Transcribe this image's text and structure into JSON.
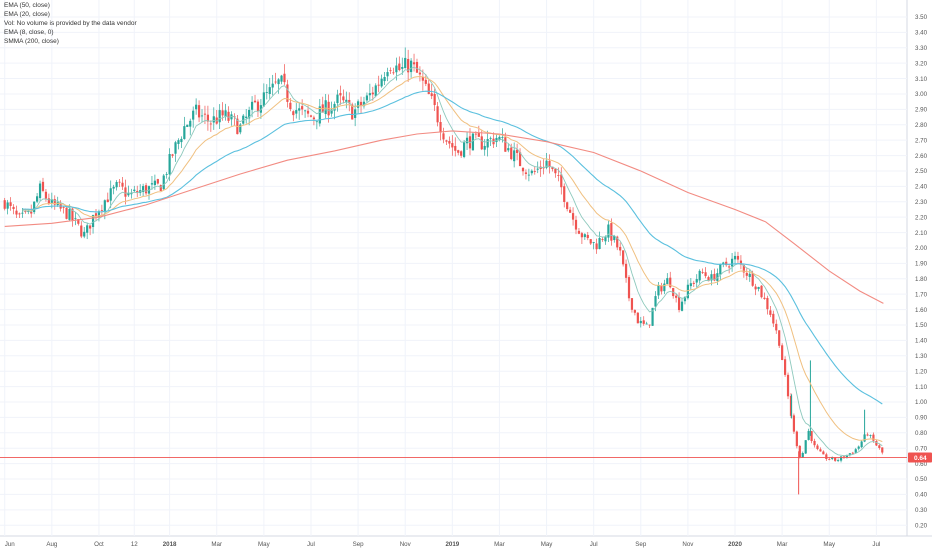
{
  "legend": [
    {
      "text": "EMA (50, close)"
    },
    {
      "text": "EMA (20, close)"
    },
    {
      "text": "Vol: No volume is provided by the data vendor"
    },
    {
      "text": "EMA (8, close, 0)"
    },
    {
      "text": "SMMA (200, close)"
    }
  ],
  "colors": {
    "up": "#26a69a",
    "down": "#ef5350",
    "ema50": "#5bc0de",
    "ema20": "#f0c080",
    "ema8": "#8ec9bd",
    "smma200": "#f28b82",
    "price_line": "#ef5350",
    "price_tag_bg": "#ef5350",
    "grid": "#f0f3fa",
    "axis_text": "#555555"
  },
  "chart_data": {
    "type": "candlestick",
    "y_axis_ticks": [
      "0.20",
      "0.30",
      "0.40",
      "0.50",
      "0.60",
      "0.70",
      "0.80",
      "0.90",
      "1.00",
      "1.10",
      "1.20",
      "1.30",
      "1.40",
      "1.50",
      "1.60",
      "1.70",
      "1.80",
      "1.90",
      "2.00",
      "2.10",
      "2.20",
      "2.30",
      "2.40",
      "2.50",
      "2.60",
      "2.70",
      "2.80",
      "2.90",
      "3.00",
      "3.10",
      "3.20",
      "3.30",
      "3.40",
      "3.50"
    ],
    "ylim": [
      0.13,
      3.61
    ],
    "x_axis_ticks": [
      {
        "label": "Jun",
        "x": 0
      },
      {
        "label": "Aug",
        "x": 2
      },
      {
        "label": "Oct",
        "x": 4
      },
      {
        "label": "12",
        "x": 5.5
      },
      {
        "label": "2018",
        "x": 7
      },
      {
        "label": "Mar",
        "x": 9
      },
      {
        "label": "May",
        "x": 11
      },
      {
        "label": "Jul",
        "x": 13
      },
      {
        "label": "Sep",
        "x": 15
      },
      {
        "label": "Nov",
        "x": 17
      },
      {
        "label": "2019",
        "x": 19
      },
      {
        "label": "Mar",
        "x": 21
      },
      {
        "label": "May",
        "x": 23
      },
      {
        "label": "Jul",
        "x": 25
      },
      {
        "label": "Sep",
        "x": 27
      },
      {
        "label": "Nov",
        "x": 29
      },
      {
        "label": "2020",
        "x": 31
      },
      {
        "label": "Mar",
        "x": 33
      },
      {
        "label": "May",
        "x": 35
      },
      {
        "label": "Jul",
        "x": 37
      }
    ],
    "xlim": [
      -0.2,
      38.3
    ],
    "last_price": "0.64",
    "price_path": [
      [
        0,
        2.3
      ],
      [
        0.6,
        2.18
      ],
      [
        1.1,
        2.22
      ],
      [
        1.5,
        2.38
      ],
      [
        2.0,
        2.28
      ],
      [
        2.7,
        2.22
      ],
      [
        3.4,
        2.08
      ],
      [
        3.8,
        2.22
      ],
      [
        4.3,
        2.32
      ],
      [
        4.8,
        2.4
      ],
      [
        5.3,
        2.34
      ],
      [
        5.9,
        2.38
      ],
      [
        6.6,
        2.4
      ],
      [
        7.1,
        2.6
      ],
      [
        7.6,
        2.78
      ],
      [
        8.1,
        2.88
      ],
      [
        8.7,
        2.82
      ],
      [
        9.3,
        2.86
      ],
      [
        10.0,
        2.78
      ],
      [
        10.6,
        2.92
      ],
      [
        11.2,
        3.0
      ],
      [
        11.7,
        3.08
      ],
      [
        12.2,
        2.92
      ],
      [
        12.7,
        2.86
      ],
      [
        13.1,
        2.85
      ],
      [
        13.6,
        2.9
      ],
      [
        14.2,
        2.96
      ],
      [
        14.8,
        2.88
      ],
      [
        15.4,
        2.97
      ],
      [
        15.9,
        3.08
      ],
      [
        16.3,
        3.21
      ],
      [
        16.8,
        3.15
      ],
      [
        17.2,
        3.2
      ],
      [
        17.7,
        3.08
      ],
      [
        18.2,
        2.92
      ],
      [
        18.7,
        2.72
      ],
      [
        19.2,
        2.62
      ],
      [
        19.7,
        2.7
      ],
      [
        20.3,
        2.68
      ],
      [
        20.9,
        2.72
      ],
      [
        21.4,
        2.64
      ],
      [
        21.9,
        2.55
      ],
      [
        22.4,
        2.48
      ],
      [
        23.0,
        2.56
      ],
      [
        23.6,
        2.4
      ],
      [
        24.1,
        2.2
      ],
      [
        24.6,
        2.06
      ],
      [
        25.1,
        2.02
      ],
      [
        25.6,
        2.12
      ],
      [
        26.1,
        1.98
      ],
      [
        26.5,
        1.68
      ],
      [
        26.9,
        1.52
      ],
      [
        27.3,
        1.48
      ],
      [
        27.7,
        1.72
      ],
      [
        28.2,
        1.8
      ],
      [
        28.6,
        1.62
      ],
      [
        29.1,
        1.76
      ],
      [
        29.6,
        1.84
      ],
      [
        30.0,
        1.8
      ],
      [
        30.5,
        1.88
      ],
      [
        31.0,
        1.93
      ],
      [
        31.5,
        1.84
      ],
      [
        32.0,
        1.74
      ],
      [
        32.5,
        1.58
      ],
      [
        32.9,
        1.38
      ],
      [
        33.2,
        1.08
      ],
      [
        33.5,
        0.8
      ],
      [
        33.8,
        0.62
      ],
      [
        34.1,
        0.82
      ],
      [
        34.4,
        0.7
      ],
      [
        34.8,
        0.64
      ],
      [
        35.3,
        0.62
      ],
      [
        35.8,
        0.66
      ],
      [
        36.2,
        0.7
      ],
      [
        36.6,
        0.8
      ],
      [
        37.0,
        0.72
      ],
      [
        37.3,
        0.66
      ]
    ],
    "spikes": [
      [
        33.4,
        1.05
      ],
      [
        33.7,
        0.4
      ],
      [
        34.2,
        1.27
      ],
      [
        36.5,
        0.95
      ]
    ],
    "smma200": [
      [
        0,
        2.14
      ],
      [
        2,
        2.16
      ],
      [
        4,
        2.2
      ],
      [
        6,
        2.28
      ],
      [
        8,
        2.38
      ],
      [
        10,
        2.48
      ],
      [
        12,
        2.57
      ],
      [
        14,
        2.63
      ],
      [
        16,
        2.7
      ],
      [
        17.5,
        2.74
      ],
      [
        19,
        2.76
      ],
      [
        21,
        2.74
      ],
      [
        23,
        2.69
      ],
      [
        25,
        2.62
      ],
      [
        27,
        2.5
      ],
      [
        29,
        2.36
      ],
      [
        31,
        2.25
      ],
      [
        32.3,
        2.17
      ],
      [
        33.5,
        2.03
      ],
      [
        35,
        1.85
      ],
      [
        36.3,
        1.72
      ],
      [
        37.3,
        1.64
      ]
    ]
  }
}
